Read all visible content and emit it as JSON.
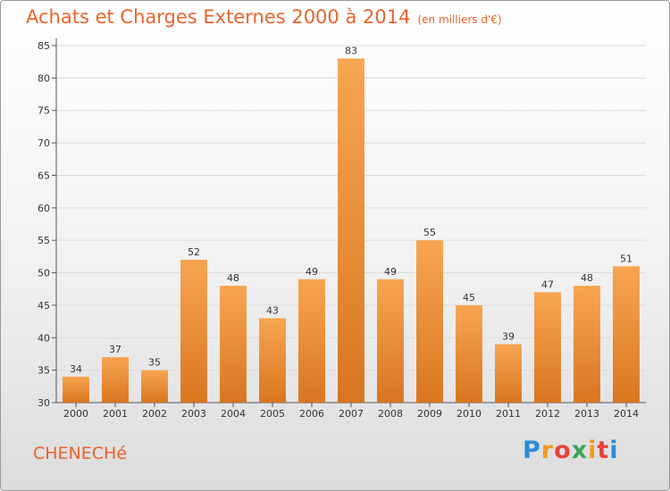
{
  "chart_data": {
    "type": "bar",
    "title": "Achats et Charges Externes 2000 à 2014",
    "subtitle": "(en milliers d'€)",
    "categories": [
      "2000",
      "2001",
      "2002",
      "2003",
      "2004",
      "2005",
      "2006",
      "2007",
      "2008",
      "2009",
      "2010",
      "2011",
      "2012",
      "2013",
      "2014"
    ],
    "values": [
      34,
      37,
      35,
      52,
      48,
      43,
      49,
      83,
      49,
      55,
      45,
      39,
      47,
      48,
      51
    ],
    "ylim": [
      30,
      85
    ],
    "yticks": [
      30,
      35,
      40,
      45,
      50,
      55,
      60,
      65,
      70,
      75,
      80,
      85
    ],
    "grid": "horizontal",
    "bar_color_top": "#f7a552",
    "bar_color_bottom": "#d9761f"
  },
  "place": "CHENECHé",
  "logo": {
    "letters": [
      "P",
      "r",
      "o",
      "x",
      "i",
      "t",
      "i"
    ],
    "colors": [
      "#2a8dd4",
      "#f29a1f",
      "#e8443a",
      "#3ba55c",
      "#f29a1f",
      "#e8443a",
      "#2a8dd4"
    ]
  },
  "colors": {
    "accent": "#e8642c"
  }
}
